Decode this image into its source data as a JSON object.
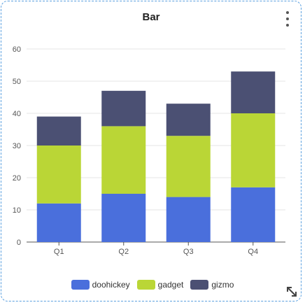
{
  "card": {
    "title": "Bar"
  },
  "menu_icon": "kebab-vertical-icon",
  "resize_icon": "resize-diagonal-icon",
  "chart_data": {
    "type": "bar",
    "stacked": true,
    "title": "Bar",
    "xlabel": "",
    "ylabel": "",
    "categories": [
      "Q1",
      "Q2",
      "Q3",
      "Q4"
    ],
    "ylim": [
      0,
      60
    ],
    "yticks": [
      0,
      10,
      20,
      30,
      40,
      50,
      60
    ],
    "grid": true,
    "legend_position": "bottom",
    "series": [
      {
        "name": "doohickey",
        "color": "#4a6fdc",
        "values": [
          12,
          15,
          14,
          17
        ]
      },
      {
        "name": "gadget",
        "color": "#bad636",
        "values": [
          18,
          21,
          19,
          23
        ]
      },
      {
        "name": "gizmo",
        "color": "#4b5073",
        "values": [
          9,
          11,
          10,
          13
        ]
      }
    ]
  }
}
